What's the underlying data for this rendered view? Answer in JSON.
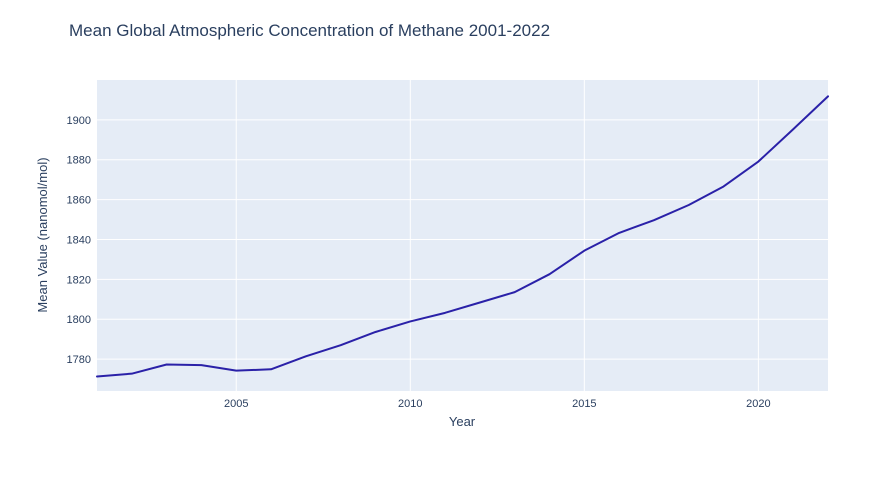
{
  "chart_data": {
    "type": "line",
    "title": "Mean Global Atmospheric Concentration of Methane 2001-2022",
    "xlabel": "Year",
    "ylabel": "Mean Value (nanomol/mol)",
    "xlim": [
      2001,
      2022
    ],
    "ylim": [
      1764,
      1920
    ],
    "x_ticks": [
      2005,
      2010,
      2015,
      2020
    ],
    "y_ticks": [
      1780,
      1800,
      1820,
      1840,
      1860,
      1880,
      1900
    ],
    "grid": true,
    "legend": "none",
    "series": [
      {
        "x": [
          2001,
          2002,
          2003,
          2004,
          2005,
          2006,
          2007,
          2008,
          2009,
          2010,
          2011,
          2012,
          2013,
          2014,
          2015,
          2016,
          2017,
          2018,
          2019,
          2020,
          2021,
          2022
        ],
        "values": [
          1771.3,
          1772.7,
          1777.3,
          1777.0,
          1774.2,
          1774.9,
          1781.4,
          1787.0,
          1793.6,
          1798.9,
          1803.2,
          1808.4,
          1813.6,
          1822.6,
          1834.4,
          1843.3,
          1849.7,
          1857.3,
          1866.6,
          1879.1,
          1895.3,
          1911.8
        ],
        "color": "#2a21a8"
      }
    ],
    "colors": {
      "plot_background": "#e5ecf6",
      "grid": "#ffffff",
      "text": "#2a3f5f",
      "line": "#2a21a8"
    }
  }
}
